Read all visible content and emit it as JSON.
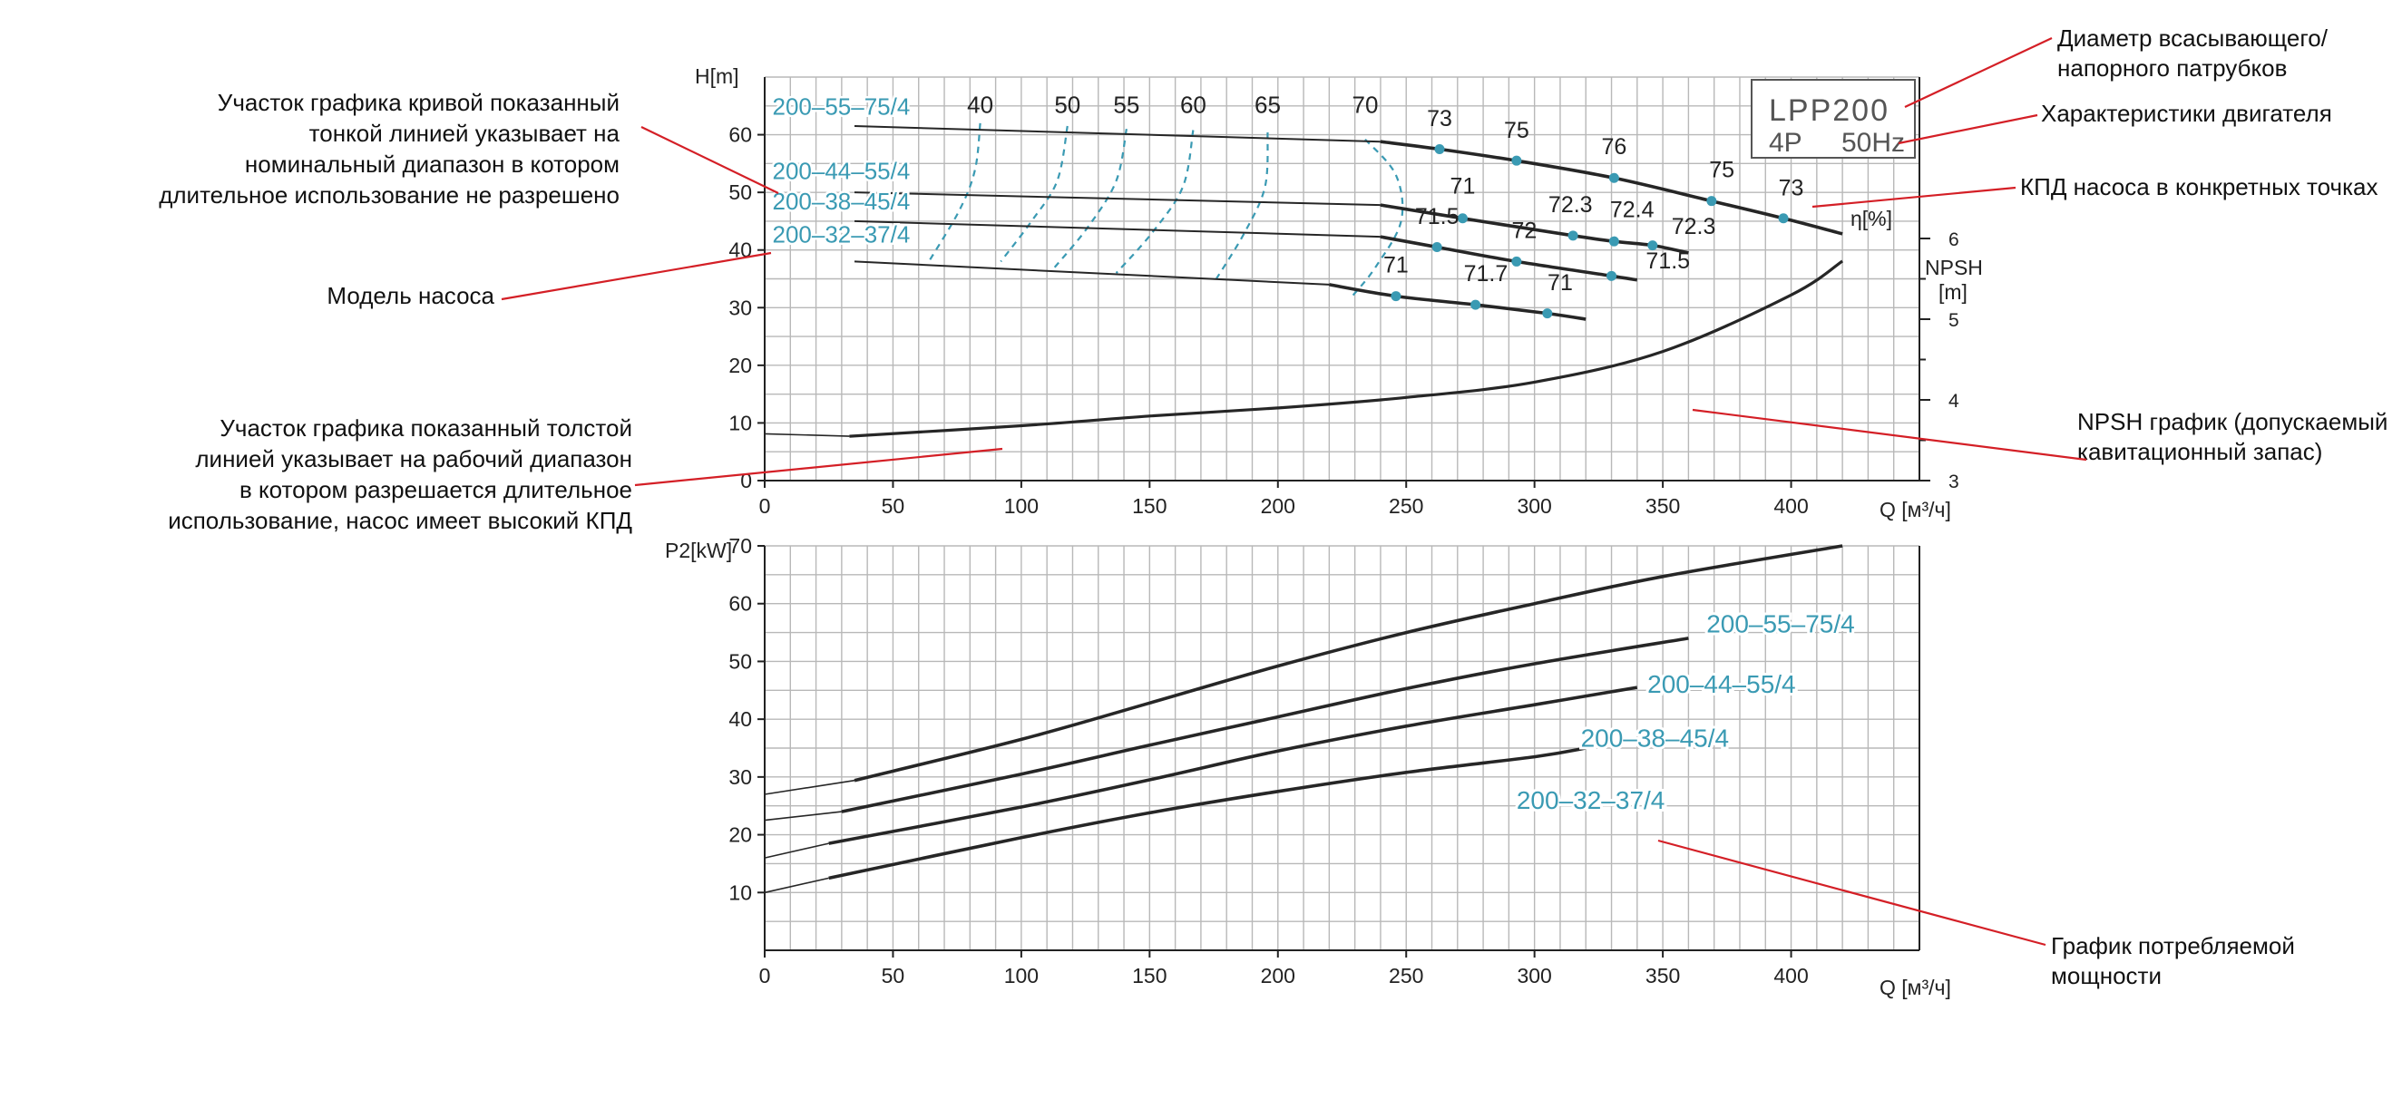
{
  "chart_data": [
    {
      "type": "line",
      "title": "",
      "xlabel": "Q [м³/ч]",
      "ylabel": "H[m]",
      "y2label_lines": [
        "NPSH",
        "[m]"
      ],
      "eta_label": "η[%]",
      "xlim": [
        0,
        450
      ],
      "ylim": [
        0,
        70
      ],
      "y2lim": [
        3,
        8
      ],
      "x_ticks": [
        0,
        50,
        100,
        150,
        200,
        250,
        300,
        350,
        400
      ],
      "y_ticks": [
        0,
        10,
        20,
        30,
        40,
        50,
        60
      ],
      "y2_ticks": [
        3,
        4,
        5,
        6
      ],
      "grid": true,
      "series": [
        {
          "name": "200-55-75/4",
          "label": "200–55–75/4",
          "label_pos": [
            3,
            63.5
          ],
          "thin": [
            [
              35,
              61.5
            ],
            [
              240,
              58.8
            ]
          ],
          "thick": [
            [
              240,
              58.8
            ],
            [
              263,
              57.5
            ],
            [
              293,
              55.5
            ],
            [
              331,
              52.5
            ],
            [
              369,
              48.5
            ],
            [
              397,
              45.5
            ],
            [
              420,
              42.8
            ]
          ]
        },
        {
          "name": "200-44-55/4",
          "label": "200–44–55/4",
          "label_pos": [
            3,
            52.3
          ],
          "thin": [
            [
              35,
              50
            ],
            [
              240,
              47.8
            ]
          ],
          "thick": [
            [
              240,
              47.8
            ],
            [
              272,
              45.5
            ],
            [
              315,
              42.5
            ],
            [
              331,
              41.5
            ],
            [
              346,
              40.8
            ],
            [
              360,
              39.5
            ]
          ]
        },
        {
          "name": "200-38-45/4",
          "label": "200–38–45/4",
          "label_pos": [
            3,
            47
          ],
          "thin": [
            [
              35,
              45
            ],
            [
              240,
              42.3
            ]
          ],
          "thick": [
            [
              240,
              42.3
            ],
            [
              262,
              40.5
            ],
            [
              293,
              38
            ],
            [
              330,
              35.5
            ],
            [
              340,
              34.8
            ]
          ]
        },
        {
          "name": "200-32-37/4",
          "label": "200–32–37/4",
          "label_pos": [
            3,
            41.3
          ],
          "thin": [
            [
              35,
              38
            ],
            [
              220,
              34
            ]
          ],
          "thick": [
            [
              220,
              34
            ],
            [
              246,
              32
            ],
            [
              277,
              30.5
            ],
            [
              305,
              29
            ],
            [
              320,
              28
            ]
          ]
        }
      ],
      "eff_points": [
        {
          "x": 263,
          "y": 57.5,
          "label": "73",
          "lx": 263,
          "ly": 61.5
        },
        {
          "x": 293,
          "y": 55.5,
          "label": "75",
          "lx": 293,
          "ly": 59.5
        },
        {
          "x": 331,
          "y": 52.5,
          "label": "76",
          "lx": 331,
          "ly": 56.6
        },
        {
          "x": 369,
          "y": 48.5,
          "label": "75",
          "lx": 373,
          "ly": 52.6
        },
        {
          "x": 397,
          "y": 45.5,
          "label": "73",
          "lx": 400,
          "ly": 49.5
        },
        {
          "x": 272,
          "y": 45.5,
          "label": "71",
          "lx": 272,
          "ly": 49.8
        },
        {
          "x": 315,
          "y": 42.5,
          "label": "72.3",
          "lx": 314,
          "ly": 46.6
        },
        {
          "x": 331,
          "y": 41.5,
          "label": "72.4",
          "lx": 338,
          "ly": 45.7
        },
        {
          "x": 346,
          "y": 40.8,
          "label": "72.3",
          "lx": 362,
          "ly": 42.8
        },
        {
          "x": 262,
          "y": 40.5,
          "label": "71.5",
          "lx": 262,
          "ly": 44.5
        },
        {
          "x": 293,
          "y": 38,
          "label": "72",
          "lx": 296,
          "ly": 42.1
        },
        {
          "x": 330,
          "y": 35.5,
          "label": "71.5",
          "lx": 352,
          "ly": 36.8
        },
        {
          "x": 246,
          "y": 32,
          "label": "71",
          "lx": 246,
          "ly": 36.1
        },
        {
          "x": 277,
          "y": 30.5,
          "label": "71.7",
          "lx": 281,
          "ly": 34.6
        },
        {
          "x": 305,
          "y": 29,
          "label": "71",
          "lx": 310,
          "ly": 33
        }
      ],
      "iso_eff": [
        {
          "label": "40",
          "lx": 84,
          "ly": 63.8,
          "points": [
            [
              84,
              62
            ],
            [
              82,
              54
            ],
            [
              76,
              47
            ],
            [
              64,
              38
            ]
          ]
        },
        {
          "label": "50",
          "lx": 118,
          "ly": 63.8,
          "points": [
            [
              118,
              61.5
            ],
            [
              114,
              52
            ],
            [
              104,
              45
            ],
            [
              92,
              38
            ]
          ]
        },
        {
          "label": "55",
          "lx": 141,
          "ly": 63.8,
          "points": [
            [
              141,
              61
            ],
            [
              137,
              52
            ],
            [
              126,
              44
            ],
            [
              113,
              37
            ]
          ]
        },
        {
          "label": "60",
          "lx": 167,
          "ly": 63.8,
          "points": [
            [
              167,
              60.8
            ],
            [
              163,
              51
            ],
            [
              151,
              43
            ],
            [
              137,
              36
            ]
          ]
        },
        {
          "label": "65",
          "lx": 196,
          "ly": 63.8,
          "points": [
            [
              196,
              60.4
            ],
            [
              195,
              51
            ],
            [
              187,
              43
            ],
            [
              176,
              35
            ]
          ]
        },
        {
          "label": "70",
          "lx": 234,
          "ly": 63.8,
          "points": [
            [
              234,
              59.2
            ],
            [
              246,
              53
            ],
            [
              248,
              45
            ],
            [
              238,
              37
            ],
            [
              229,
              32
            ]
          ]
        }
      ],
      "npsh": {
        "points": [
          [
            33,
            3.55
          ],
          [
            100,
            3.68
          ],
          [
            150,
            3.8
          ],
          [
            200,
            3.9
          ],
          [
            250,
            4.03
          ],
          [
            300,
            4.22
          ],
          [
            350,
            4.6
          ],
          [
            400,
            5.3
          ],
          [
            420,
            5.72
          ]
        ],
        "extension": [
          [
            0,
            3.58
          ],
          [
            33,
            3.55
          ]
        ]
      }
    },
    {
      "type": "line",
      "title": "",
      "xlabel": "Q [м³/ч]",
      "ylabel": "P2[kW]",
      "xlim": [
        0,
        450
      ],
      "ylim": [
        0,
        70
      ],
      "x_ticks": [
        0,
        50,
        100,
        150,
        200,
        250,
        300,
        350,
        400
      ],
      "y_ticks": [
        10,
        20,
        30,
        40,
        50,
        60,
        70
      ],
      "grid": true,
      "series": [
        {
          "name": "200-55-75/4",
          "label": "200–55–75/4",
          "label_pos": [
            367,
            55
          ],
          "thin": [
            [
              0,
              27
            ],
            [
              35,
              29.4
            ]
          ],
          "thick": [
            [
              35,
              29.4
            ],
            [
              100,
              36.5
            ],
            [
              150,
              42.8
            ],
            [
              200,
              49.2
            ],
            [
              250,
              55
            ],
            [
              300,
              60
            ],
            [
              350,
              64.7
            ],
            [
              420,
              70
            ]
          ]
        },
        {
          "name": "200-44-55/4",
          "label": "200–44–55/4",
          "label_pos": [
            344,
            44.6
          ],
          "thin": [
            [
              0,
              22.5
            ],
            [
              30,
              24
            ]
          ],
          "thick": [
            [
              30,
              24
            ],
            [
              100,
              30.5
            ],
            [
              150,
              35.5
            ],
            [
              200,
              40.4
            ],
            [
              250,
              45.3
            ],
            [
              300,
              49.6
            ],
            [
              360,
              54
            ]
          ]
        },
        {
          "name": "200-38-45/4",
          "label": "200–38–45/4",
          "label_pos": [
            318,
            35.2
          ],
          "thin": [
            [
              0,
              16
            ],
            [
              25,
              18.5
            ]
          ],
          "thick": [
            [
              25,
              18.5
            ],
            [
              100,
              24.8
            ],
            [
              150,
              29.5
            ],
            [
              200,
              34.5
            ],
            [
              250,
              38.8
            ],
            [
              300,
              42.5
            ],
            [
              340,
              45.5
            ]
          ]
        },
        {
          "name": "200-32-37/4",
          "label": "200–32–37/4",
          "label_pos": [
            293,
            24.5
          ],
          "thin": [
            [
              0,
              10
            ],
            [
              25,
              12.5
            ]
          ],
          "thick": [
            [
              25,
              12.5
            ],
            [
              100,
              19.5
            ],
            [
              150,
              23.8
            ],
            [
              200,
              27.5
            ],
            [
              250,
              30.8
            ],
            [
              300,
              33.5
            ],
            [
              320,
              35
            ]
          ]
        }
      ]
    }
  ],
  "legend_box": {
    "line1": "LPP200",
    "line2a": "4P",
    "line2b": "50Hz"
  },
  "annotations": {
    "thin_line": [
      "Участок графика кривой показанный",
      "тонкой линией указывает на",
      "номинальный диапазон в котором",
      "длительное использование не разрешено"
    ],
    "model": [
      "Модель насоса"
    ],
    "thick_line": [
      "Участок графика показанный толстой",
      "линией указывает на рабочий диапазон",
      "в котором разрешается длительное",
      "использование, насос имеет высокий КПД"
    ],
    "diameter": [
      "Диаметр всасывающего/",
      "напорного патрубков"
    ],
    "motor": [
      "Характеристики двигателя"
    ],
    "efficiency": [
      "КПД насоса в конкретных точках"
    ],
    "npsh": [
      "NPSH график (допускаемый",
      "кавитационный запас)"
    ],
    "power": [
      "График потребляемой",
      "мощности"
    ]
  },
  "colors": {
    "curve": "#262626",
    "accent": "#3a9ab3",
    "leader": "#d41f26",
    "grid": "#b8b8b8"
  }
}
